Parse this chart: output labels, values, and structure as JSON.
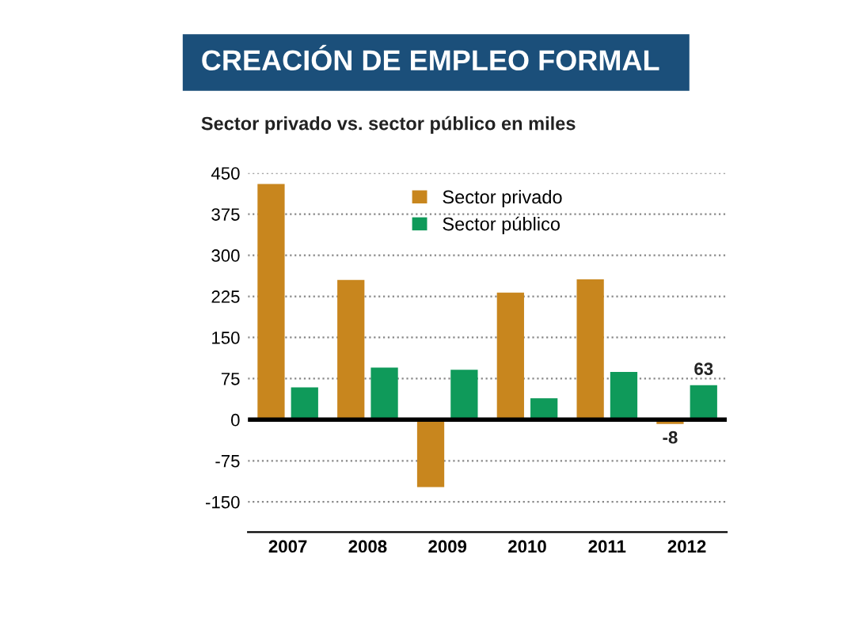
{
  "chart_data": {
    "type": "bar",
    "title": "CREACIÓN DE EMPLEO FORMAL",
    "subtitle": "Sector privado vs. sector público en miles",
    "categories": [
      "2007",
      "2008",
      "2009",
      "2010",
      "2011",
      "2012"
    ],
    "series": [
      {
        "name": "Sector privado",
        "color": "#c8861e",
        "values": [
          430,
          255,
          -123,
          232,
          256,
          -8
        ],
        "value_labels": [
          null,
          null,
          null,
          null,
          null,
          "-8"
        ]
      },
      {
        "name": "Sector público",
        "color": "#0f9a5a",
        "values": [
          59,
          95,
          91,
          39,
          87,
          63
        ],
        "value_labels": [
          null,
          null,
          null,
          null,
          null,
          "63"
        ]
      }
    ],
    "ylim": [
      -205,
      450
    ],
    "yticks": [
      -150,
      -75,
      0,
      75,
      150,
      225,
      300,
      375,
      450
    ],
    "grid": "y",
    "legend": "top"
  }
}
